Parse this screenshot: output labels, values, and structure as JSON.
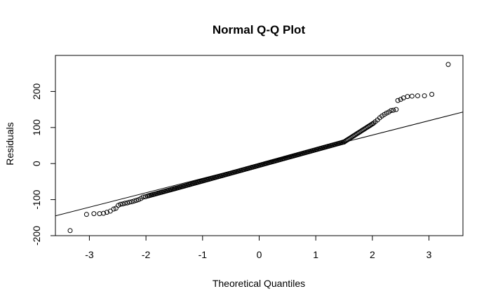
{
  "chart_data": {
    "type": "scatter",
    "title": "Normal Q-Q Plot",
    "xlabel": "Theoretical Quantiles",
    "ylabel": "Residuals",
    "xlim": [
      -3.6,
      3.6
    ],
    "ylim": [
      -200,
      300
    ],
    "xticks": [
      -3,
      -2,
      -1,
      0,
      1,
      2,
      3
    ],
    "xtick_labels": [
      "-3",
      "-2",
      "-1",
      "0",
      "1",
      "2",
      "3"
    ],
    "yticks": [
      -200,
      -100,
      0,
      100,
      200
    ],
    "ytick_labels": [
      "-200",
      "-100",
      "0",
      "100",
      "200"
    ],
    "grid": false,
    "legend": "none",
    "colors": {
      "points": "#000000",
      "line": "#000000",
      "frame": "#000000",
      "background": "#ffffff"
    },
    "reference_line": {
      "x": [
        -3.6,
        3.6
      ],
      "y": [
        -145,
        143
      ]
    },
    "points_reading": {
      "tail_low": [
        [
          -3.34,
          -186
        ],
        [
          -3.05,
          -141
        ],
        [
          -2.92,
          -139
        ],
        [
          -2.82,
          -139
        ],
        [
          -2.75,
          -138
        ],
        [
          -2.69,
          -135
        ],
        [
          -2.63,
          -132
        ],
        [
          -2.57,
          -126
        ],
        [
          -2.53,
          -124
        ],
        [
          -2.49,
          -116
        ],
        [
          -2.45,
          -113
        ],
        [
          -2.41,
          -112
        ],
        [
          -2.37,
          -110
        ],
        [
          -2.33,
          -109
        ],
        [
          -2.29,
          -107
        ],
        [
          -2.25,
          -106
        ],
        [
          -2.21,
          -104
        ],
        [
          -2.17,
          -102
        ],
        [
          -2.13,
          -100
        ],
        [
          -2.09,
          -97
        ],
        [
          -2.05,
          -93
        ],
        [
          -2.01,
          -92
        ]
      ],
      "tail_high": [
        [
          2.05,
          116
        ],
        [
          2.09,
          121
        ],
        [
          2.13,
          127
        ],
        [
          2.17,
          132
        ],
        [
          2.21,
          136
        ],
        [
          2.25,
          140
        ],
        [
          2.29,
          143
        ],
        [
          2.33,
          147
        ],
        [
          2.37,
          148
        ],
        [
          2.42,
          150
        ],
        [
          2.45,
          175
        ],
        [
          2.5,
          178
        ],
        [
          2.55,
          182
        ],
        [
          2.62,
          186
        ],
        [
          2.7,
          187
        ],
        [
          2.8,
          188
        ],
        [
          2.92,
          188
        ],
        [
          3.05,
          192
        ],
        [
          3.34,
          275
        ]
      ],
      "body_segments": [
        {
          "x_from": -1.97,
          "x_to": -1.5,
          "y_from": -90,
          "y_to": -70,
          "count": 24
        },
        {
          "x_from": -1.5,
          "x_to": 1.5,
          "y_from": -70,
          "y_to": 60,
          "count": 150
        },
        {
          "x_from": 1.5,
          "x_to": 2.02,
          "y_from": 60,
          "y_to": 112,
          "count": 27
        }
      ]
    }
  }
}
